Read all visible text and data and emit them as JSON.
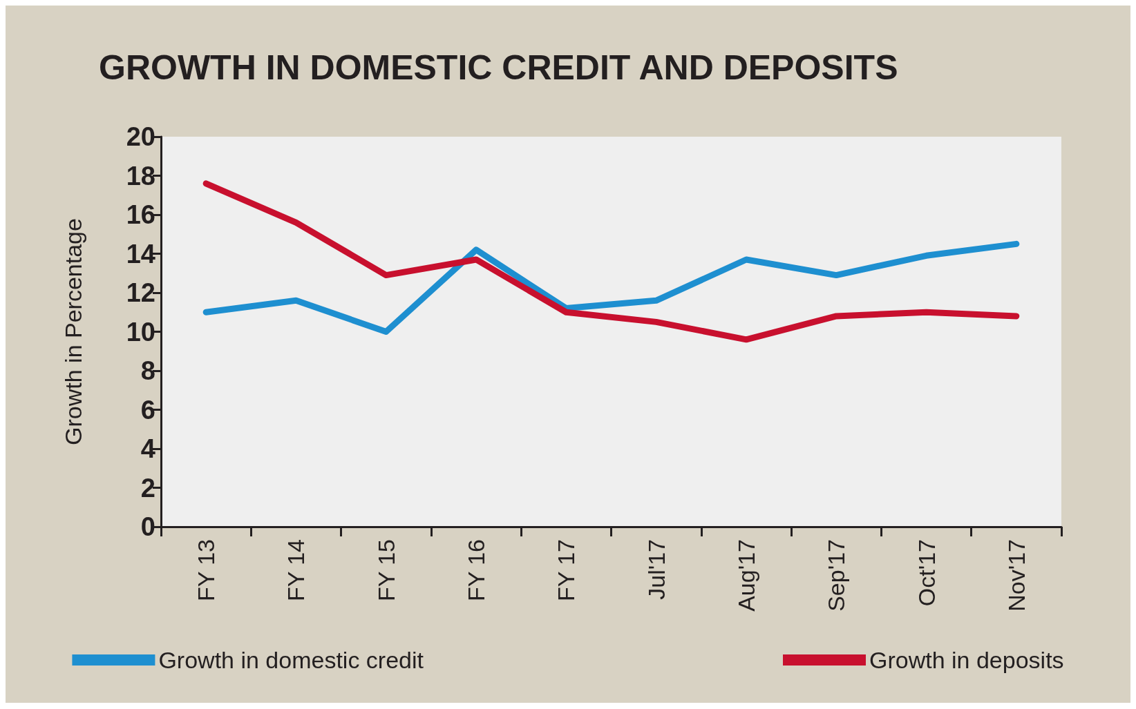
{
  "chart_data": {
    "type": "line",
    "title": "GROWTH IN DOMESTIC CREDIT AND DEPOSITS",
    "ylabel": "Growth in Percentage",
    "categories": [
      "FY 13",
      "FY 14",
      "FY 15",
      "FY 16",
      "FY 17",
      "Jul'17",
      "Aug'17",
      "Sep'17",
      "Oct'17",
      "Nov'17"
    ],
    "series": [
      {
        "name": "Growth in domestic credit",
        "color": "#1e8fd0",
        "values": [
          11.0,
          11.6,
          10.0,
          14.2,
          11.2,
          11.6,
          13.7,
          12.9,
          13.9,
          14.5
        ]
      },
      {
        "name": "Growth in deposits",
        "color": "#c8102e",
        "values": [
          17.6,
          15.6,
          12.9,
          13.7,
          11.0,
          10.5,
          9.6,
          10.8,
          11.0,
          10.8
        ]
      }
    ],
    "ylim": [
      0,
      20
    ],
    "yticks": [
      0,
      2,
      4,
      6,
      8,
      10,
      12,
      14,
      16,
      18,
      20
    ],
    "grid": false,
    "legend": "bottom",
    "marker": "none",
    "line_style": "solid"
  }
}
